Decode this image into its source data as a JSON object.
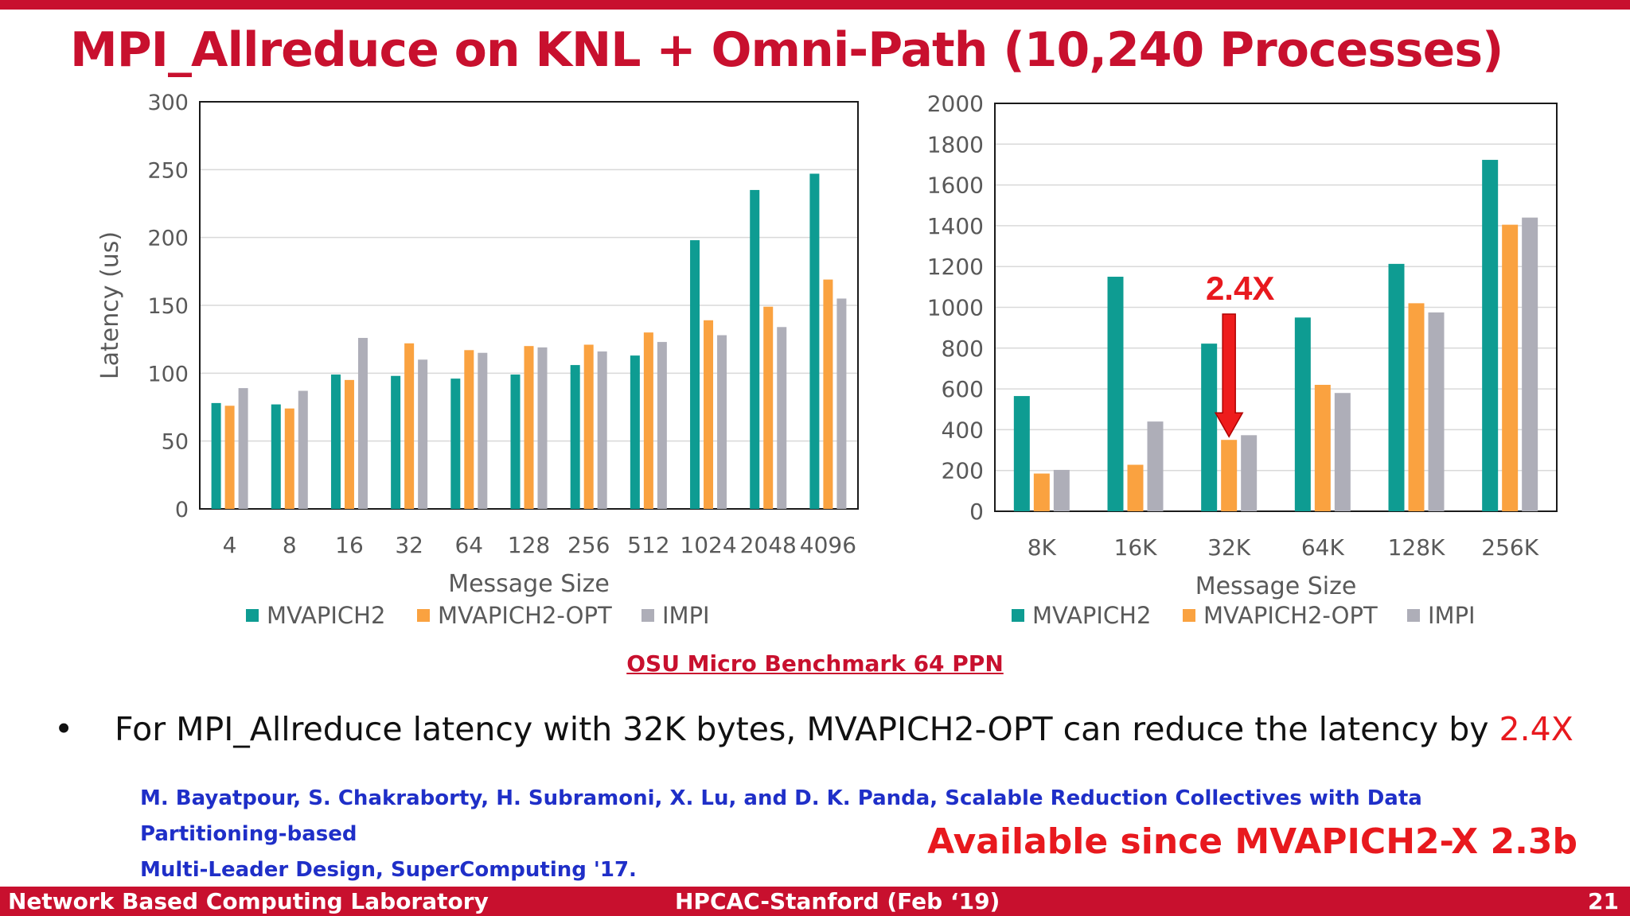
{
  "slide": {
    "title": "MPI_Allreduce on KNL + Omni-Path (10,240 Processes)",
    "benchmark_label": "OSU Micro Benchmark 64 PPN",
    "bullet": {
      "text": "For MPI_Allreduce latency with 32K bytes, MVAPICH2-OPT can reduce the latency by ",
      "highlight": "2.4X"
    },
    "reference_line1": "M. Bayatpour, S. Chakraborty, H. Subramoni, X. Lu, and D. K. Panda, Scalable Reduction Collectives with Data Partitioning-based",
    "reference_line2": "Multi-Leader Design, SuperComputing '17.",
    "availability": "Available since MVAPICH2-X 2.3b",
    "footer": {
      "left": "Network Based Computing Laboratory",
      "center": "HPCAC-Stanford (Feb ‘19)",
      "page": "21"
    }
  },
  "colors": {
    "MVAPICH2": "#0e9c92",
    "MVAPICH2-OPT": "#faa240",
    "IMPI": "#aeaeb8",
    "accent": "#c8102e",
    "highlight": "#e8191e"
  },
  "chart_data": [
    {
      "type": "bar",
      "title": "",
      "xlabel": "Message Size",
      "ylabel": "Latency (us)",
      "ylim": [
        0,
        300
      ],
      "yticks": [
        0,
        50,
        100,
        150,
        200,
        250,
        300
      ],
      "grid": true,
      "legend": "bottom",
      "categories": [
        "4",
        "8",
        "16",
        "32",
        "64",
        "128",
        "256",
        "512",
        "1024",
        "2048",
        "4096"
      ],
      "series": [
        {
          "name": "MVAPICH2",
          "values": [
            78,
            77,
            99,
            98,
            96,
            99,
            106,
            113,
            198,
            235,
            247
          ]
        },
        {
          "name": "MVAPICH2-OPT",
          "values": [
            76,
            74,
            95,
            122,
            117,
            120,
            121,
            130,
            139,
            149,
            169
          ]
        },
        {
          "name": "IMPI",
          "values": [
            89,
            87,
            126,
            110,
            115,
            119,
            116,
            123,
            128,
            134,
            155
          ]
        }
      ]
    },
    {
      "type": "bar",
      "title": "",
      "xlabel": "Message Size",
      "ylabel": "",
      "ylim": [
        0,
        2000
      ],
      "yticks": [
        0,
        200,
        400,
        600,
        800,
        1000,
        1200,
        1400,
        1600,
        1800,
        2000
      ],
      "grid": true,
      "legend": "bottom",
      "categories": [
        "8K",
        "16K",
        "32K",
        "64K",
        "128K",
        "256K"
      ],
      "series": [
        {
          "name": "MVAPICH2",
          "values": [
            565,
            1150,
            822,
            950,
            1213,
            1723
          ]
        },
        {
          "name": "MVAPICH2-OPT",
          "values": [
            185,
            228,
            350,
            620,
            1020,
            1405
          ]
        },
        {
          "name": "IMPI",
          "values": [
            203,
            440,
            373,
            580,
            975,
            1440
          ]
        }
      ],
      "annotations": [
        {
          "text": "2.4X",
          "category": "32K"
        }
      ]
    }
  ]
}
